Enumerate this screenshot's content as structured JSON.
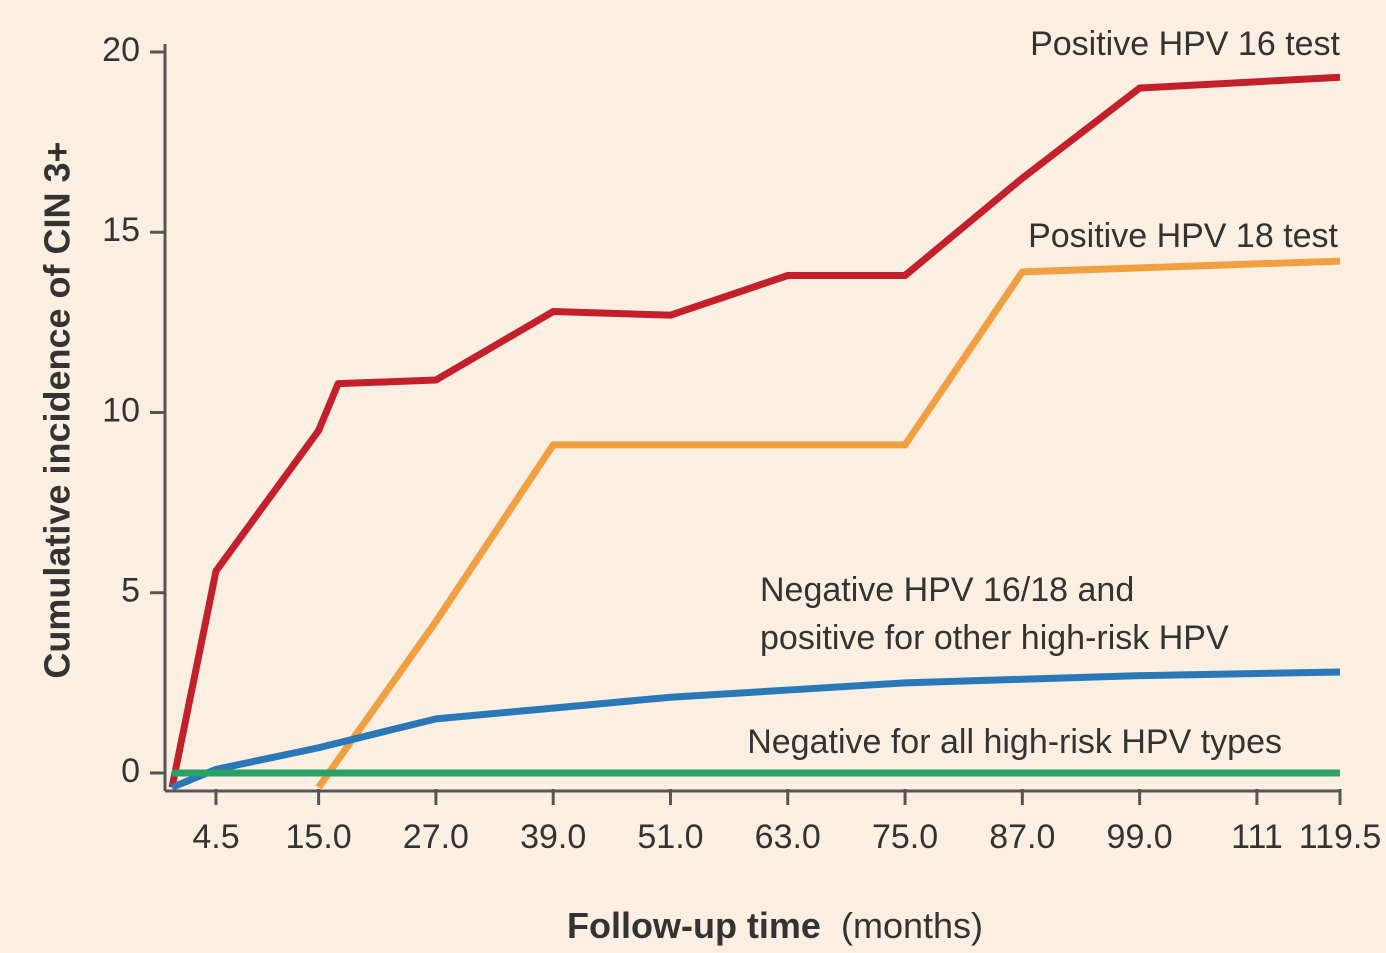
{
  "chart_data": {
    "type": "line",
    "x_label": "Follow-up time",
    "x_label_unit": "(months)",
    "y_label": "Cumulative incidence of CIN 3+",
    "xlim": [
      0,
      119.5
    ],
    "ylim": [
      -0.5,
      20
    ],
    "xticks": [
      4.5,
      {
        "value": 15,
        "label": "15.0"
      },
      {
        "value": 27,
        "label": "27.0"
      },
      {
        "value": 39,
        "label": "39.0"
      },
      {
        "value": 51,
        "label": "51.0"
      },
      {
        "value": 63,
        "label": "63.0"
      },
      {
        "value": 75,
        "label": "75.0"
      },
      {
        "value": 87,
        "label": "87.0"
      },
      {
        "value": 99,
        "label": "99.0"
      },
      111,
      119.5
    ],
    "yticks": [
      0,
      5,
      10,
      15,
      20
    ],
    "series": [
      {
        "name": "Positive HPV 16 test",
        "color": "#c4202c",
        "x": [
          0,
          4.5,
          15,
          17,
          27,
          39,
          51,
          63,
          75,
          87,
          99,
          119.5
        ],
        "values": [
          -0.4,
          5.6,
          9.5,
          10.8,
          10.9,
          12.8,
          12.7,
          13.8,
          13.8,
          16.5,
          19,
          19.3
        ]
      },
      {
        "name": "Positive HPV 18 test",
        "color": "#f0a040",
        "x": [
          15,
          27,
          39,
          75,
          87,
          119.5
        ],
        "values": [
          -0.4,
          4.2,
          9.1,
          9.1,
          13.9,
          14.2
        ]
      },
      {
        "name": "Negative HPV 16/18 and positive for other high-risk HPV",
        "color": "#2a78b8",
        "x": [
          0,
          4.5,
          15,
          27,
          39,
          51,
          63,
          75,
          87,
          99,
          119.5
        ],
        "values": [
          -0.4,
          0.1,
          0.7,
          1.5,
          1.8,
          2.1,
          2.3,
          2.5,
          2.6,
          2.7,
          2.8
        ]
      },
      {
        "name": "Negative for all high-risk HPV types",
        "color": "#2aa064",
        "x": [
          0,
          119.5
        ],
        "values": [
          0,
          0
        ]
      }
    ]
  }
}
